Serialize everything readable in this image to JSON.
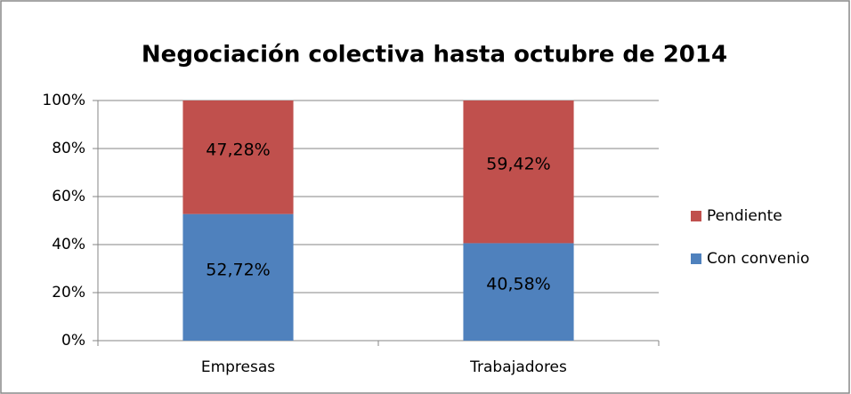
{
  "chart_data": {
    "type": "stacked_bar",
    "title": "Negociación colectiva hasta octubre de 2014",
    "categories": [
      "Empresas",
      "Trabajadores"
    ],
    "series": [
      {
        "name": "Con convenio",
        "color": "#4f81bd",
        "values": [
          52.72,
          40.58
        ],
        "value_labels": [
          "52,72%",
          "40,58%"
        ]
      },
      {
        "name": "Pendiente",
        "color": "#c0504d",
        "values": [
          47.28,
          59.42
        ],
        "value_labels": [
          "47,28%",
          "59,42%"
        ]
      }
    ],
    "ylim": [
      0,
      100
    ],
    "yticks": [
      {
        "value": 0,
        "label": "0%"
      },
      {
        "value": 20,
        "label": "20%"
      },
      {
        "value": 40,
        "label": "40%"
      },
      {
        "value": 60,
        "label": "60%"
      },
      {
        "value": 80,
        "label": "80%"
      },
      {
        "value": 100,
        "label": "100%"
      }
    ],
    "grid": true,
    "legend": "right"
  }
}
